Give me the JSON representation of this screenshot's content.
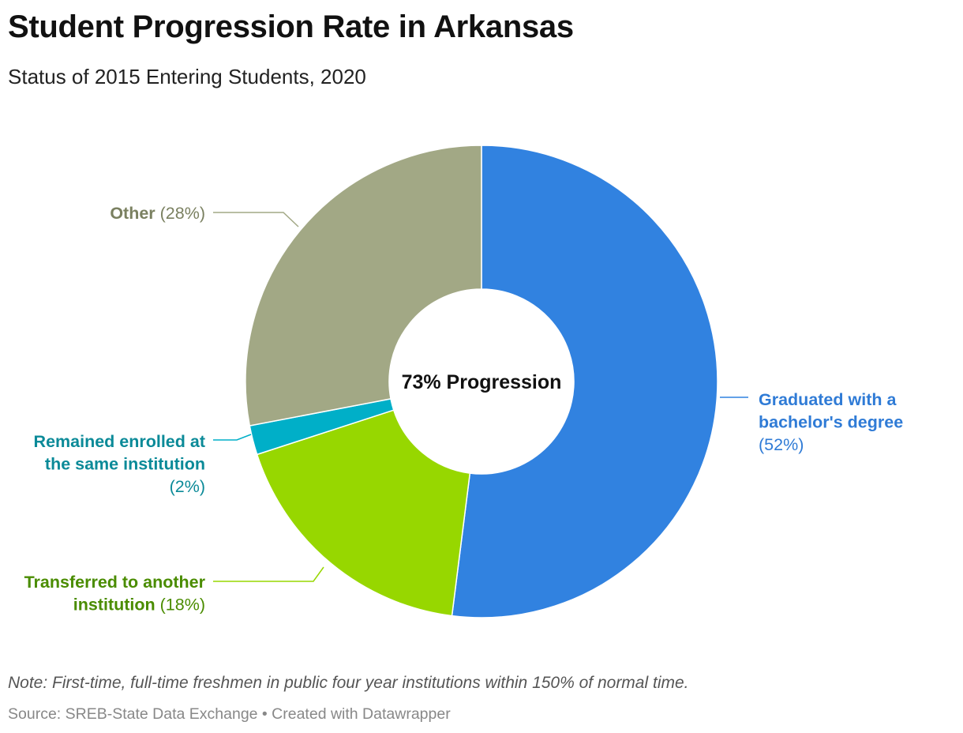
{
  "header": {
    "title": "Student Progression Rate in Arkansas",
    "subtitle": "Status of 2015 Entering Students, 2020"
  },
  "chart_data": {
    "type": "pie",
    "variant": "donut",
    "title": "Student Progression Rate in Arkansas",
    "subtitle": "Status of 2015 Entering Students, 2020",
    "center_label": "73% Progression",
    "slices": [
      {
        "name": "Graduated with a bachelor's degree",
        "label_lines": [
          "Graduated with a",
          "bachelor's degree"
        ],
        "value_label": "(52%)",
        "value": 52,
        "color": "#3182e0",
        "label_color": "#2f7bd6"
      },
      {
        "name": "Transferred to another institution",
        "label_lines": [
          "Transferred to another",
          "institution"
        ],
        "value_label": "(18%)",
        "value": 18,
        "color": "#97d700",
        "label_color": "#4a8c00"
      },
      {
        "name": "Remained enrolled at the same institution",
        "label_lines": [
          "Remained enrolled at",
          "the same institution"
        ],
        "value_label": "(2%)",
        "value": 2,
        "color": "#00afc8",
        "label_color": "#0b8a98"
      },
      {
        "name": "Other",
        "label_lines": [
          "Other"
        ],
        "value_label": "(28%)",
        "value": 28,
        "color": "#a2a885",
        "label_color": "#7a8060"
      }
    ]
  },
  "footer": {
    "note": "Note: First-time, full-time freshmen in public four year institutions within 150% of normal time.",
    "source": "Source: SREB-State Data Exchange • Created with Datawrapper"
  }
}
